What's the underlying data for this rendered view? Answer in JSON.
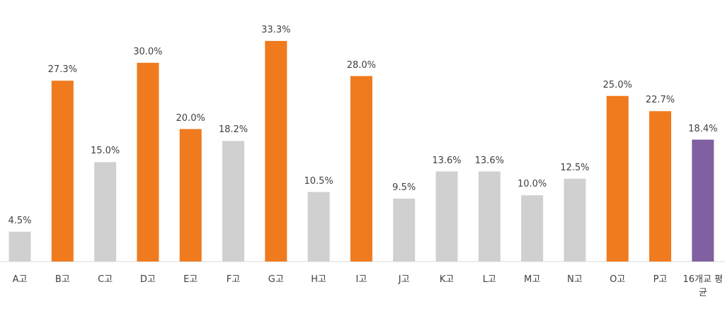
{
  "chart_data": {
    "type": "bar",
    "categories": [
      "A고",
      "B고",
      "C고",
      "D고",
      "E고",
      "F고",
      "G고",
      "H고",
      "I고",
      "J고",
      "K고",
      "L고",
      "M고",
      "N고",
      "O고",
      "P고",
      "16개교 평균"
    ],
    "values": [
      4.5,
      27.3,
      15.0,
      30.0,
      20.0,
      18.2,
      33.3,
      10.5,
      28.0,
      9.5,
      13.6,
      13.6,
      10.0,
      12.5,
      25.0,
      22.7,
      18.4
    ],
    "value_labels": [
      "4.5%",
      "27.3%",
      "15.0%",
      "30.0%",
      "20.0%",
      "18.2%",
      "33.3%",
      "10.5%",
      "28.0%",
      "9.5%",
      "13.6%",
      "13.6%",
      "10.0%",
      "12.5%",
      "25.0%",
      "22.7%",
      "18.4%"
    ],
    "colors": [
      "#d0d0d0",
      "#f07a1e",
      "#d0d0d0",
      "#f07a1e",
      "#f07a1e",
      "#d0d0d0",
      "#f07a1e",
      "#d0d0d0",
      "#f07a1e",
      "#d0d0d0",
      "#d0d0d0",
      "#d0d0d0",
      "#d0d0d0",
      "#d0d0d0",
      "#f07a1e",
      "#f07a1e",
      "#8060a0"
    ],
    "ylim": [
      0,
      35
    ]
  }
}
